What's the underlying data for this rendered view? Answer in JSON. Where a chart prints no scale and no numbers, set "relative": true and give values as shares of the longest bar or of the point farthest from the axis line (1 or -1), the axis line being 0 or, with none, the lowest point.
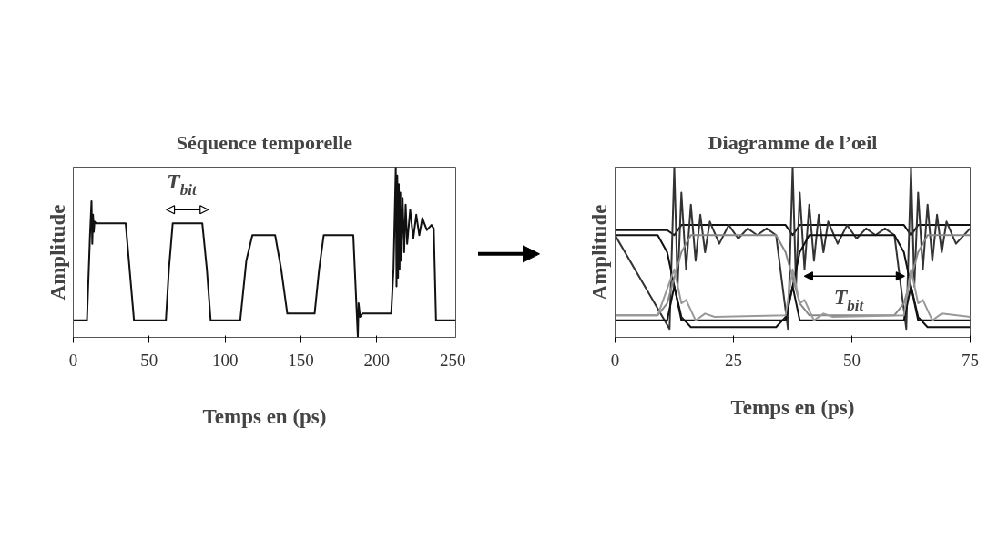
{
  "chart_data": [
    {
      "type": "line",
      "title": "Séquence temporelle",
      "xlabel": "Temps en (ps)",
      "ylabel": "Amplitude",
      "relative": true,
      "tick_labels": "x",
      "xlim": [
        0,
        252
      ],
      "xticks": [
        0,
        50,
        100,
        150,
        200,
        250
      ],
      "series": [
        {
          "color": "#111111",
          "x": [
            0,
            9,
            11,
            12,
            12.5,
            13,
            13.5,
            14,
            15,
            34.5,
            40,
            61,
            63,
            65.5,
            85,
            88,
            90.5,
            110,
            114,
            118,
            133,
            137,
            141,
            159,
            162,
            165,
            184.5,
            186,
            187.5,
            188,
            189,
            190.5,
            209.5,
            211,
            212.5,
            213,
            213.5,
            214,
            214.5,
            215,
            215.5,
            216,
            217,
            218,
            219,
            220,
            222,
            224,
            226,
            228,
            230,
            233,
            236,
            237.5,
            239,
            252
          ],
          "values": [
            0.1,
            0.1,
            0.6,
            0.8,
            0.55,
            0.72,
            0.62,
            0.68,
            0.67,
            0.67,
            0.1,
            0.1,
            0.4,
            0.67,
            0.67,
            0.4,
            0.1,
            0.1,
            0.45,
            0.6,
            0.6,
            0.4,
            0.14,
            0.14,
            0.4,
            0.6,
            0.6,
            0.3,
            0.0,
            0.2,
            0.12,
            0.14,
            0.14,
            0.4,
            1.0,
            0.3,
            0.95,
            0.35,
            0.9,
            0.4,
            0.85,
            0.45,
            0.82,
            0.5,
            0.78,
            0.55,
            0.75,
            0.58,
            0.72,
            0.6,
            0.7,
            0.63,
            0.66,
            0.64,
            0.1,
            0.1
          ]
        }
      ],
      "annotations": [
        "T$_{bit}$"
      ]
    },
    {
      "type": "line",
      "title": "Diagramme de l’œil",
      "xlabel": "Temps en (ps)",
      "ylabel": "Amplitude",
      "relative": true,
      "tick_labels": "x",
      "xlim": [
        0,
        75
      ],
      "xticks": [
        0,
        25,
        50,
        75
      ],
      "series": [
        {
          "color": "#111111",
          "x": [
            0,
            11,
            12.5,
            14,
            36,
            37.5,
            39,
            61,
            62.5,
            64,
            75
          ],
          "values": [
            0.63,
            0.63,
            0.6,
            0.66,
            0.66,
            0.6,
            0.66,
            0.66,
            0.6,
            0.66,
            0.66
          ]
        },
        {
          "color": "#333333",
          "x": [
            0,
            11.5,
            12.5,
            13.2,
            14,
            15,
            16,
            17,
            18,
            19,
            20,
            22,
            24,
            26,
            28,
            30,
            32,
            34,
            36.5,
            37.5,
            38.2,
            39,
            40,
            41,
            42,
            43,
            44,
            45,
            47,
            49,
            51,
            53,
            55,
            57,
            59,
            61.5,
            62.5,
            63.2,
            64,
            65,
            66,
            67,
            68,
            69,
            70,
            72,
            75
          ],
          "values": [
            0.6,
            0.05,
            1.0,
            0.3,
            0.85,
            0.4,
            0.78,
            0.45,
            0.72,
            0.5,
            0.68,
            0.55,
            0.66,
            0.58,
            0.64,
            0.6,
            0.64,
            0.6,
            0.05,
            1.0,
            0.3,
            0.85,
            0.4,
            0.78,
            0.45,
            0.72,
            0.5,
            0.68,
            0.55,
            0.66,
            0.58,
            0.64,
            0.6,
            0.64,
            0.6,
            0.05,
            1.0,
            0.3,
            0.85,
            0.4,
            0.78,
            0.45,
            0.72,
            0.5,
            0.68,
            0.55,
            0.64
          ]
        },
        {
          "color": "#111111",
          "x": [
            0,
            9,
            11,
            12.5,
            14,
            16,
            34,
            36,
            37.5,
            39,
            41,
            59,
            61,
            62.5,
            64,
            66,
            75
          ],
          "values": [
            0.6,
            0.6,
            0.5,
            0.3,
            0.12,
            0.06,
            0.06,
            0.12,
            0.3,
            0.5,
            0.6,
            0.6,
            0.5,
            0.3,
            0.12,
            0.06,
            0.06
          ]
        },
        {
          "color": "#888888",
          "x": [
            0,
            9,
            11,
            12.5,
            14,
            16,
            34,
            36,
            37.5,
            39,
            41,
            59,
            61,
            62.5,
            64,
            66,
            75
          ],
          "values": [
            0.13,
            0.13,
            0.2,
            0.35,
            0.5,
            0.6,
            0.6,
            0.5,
            0.35,
            0.2,
            0.13,
            0.13,
            0.2,
            0.35,
            0.5,
            0.6,
            0.6
          ]
        },
        {
          "color": "#111111",
          "x": [
            0,
            11,
            12.5,
            14,
            36,
            37.5,
            39,
            61,
            62.5,
            64,
            75
          ],
          "values": [
            0.1,
            0.1,
            0.3,
            0.1,
            0.1,
            0.3,
            0.1,
            0.1,
            0.3,
            0.1,
            0.1
          ]
        },
        {
          "color": "#999999",
          "x": [
            0,
            9,
            12.5,
            14,
            15,
            16,
            17,
            19,
            21,
            36,
            37.5,
            39,
            40,
            41,
            42,
            44,
            46,
            61,
            62.5,
            64,
            65,
            66,
            67,
            69,
            75
          ],
          "values": [
            0.13,
            0.13,
            0.4,
            0.2,
            0.22,
            0.16,
            0.1,
            0.14,
            0.12,
            0.13,
            0.4,
            0.2,
            0.22,
            0.16,
            0.1,
            0.14,
            0.12,
            0.13,
            0.4,
            0.2,
            0.22,
            0.16,
            0.1,
            0.14,
            0.12
          ]
        }
      ],
      "annotations": [
        "T$_{bit}$"
      ]
    }
  ]
}
